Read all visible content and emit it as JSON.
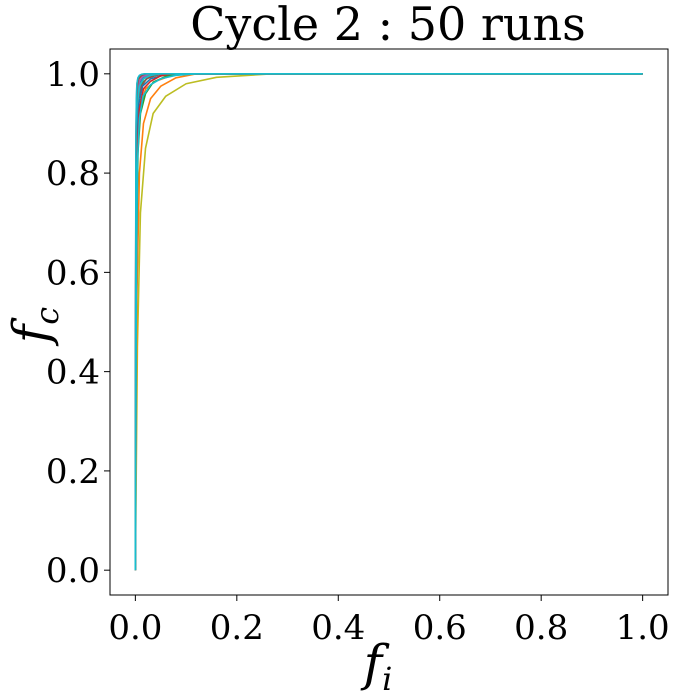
{
  "chart_data": {
    "type": "line",
    "title": "Cycle 2 : 50 runs",
    "xlabel": "f",
    "xlabel_sub": "i",
    "ylabel": "f",
    "ylabel_sub": "c",
    "xlim": [
      -0.05,
      1.05
    ],
    "ylim": [
      -0.05,
      1.05
    ],
    "xticks": [
      0.0,
      0.2,
      0.4,
      0.6,
      0.8,
      1.0
    ],
    "yticks": [
      0.0,
      0.2,
      0.4,
      0.6,
      0.8,
      1.0
    ],
    "xtick_labels": [
      "0.0",
      "0.2",
      "0.4",
      "0.6",
      "0.8",
      "1.0"
    ],
    "ytick_labels": [
      "0.0",
      "0.2",
      "0.4",
      "0.6",
      "0.8",
      "1.0"
    ],
    "grid": false,
    "legend": "none",
    "series": [
      {
        "color": "#1f77b4",
        "x": [
          0,
          0.001,
          0.002,
          0.004,
          0.008,
          0.015,
          0.03,
          0.05,
          1.0
        ],
        "y": [
          0,
          0.7,
          0.88,
          0.95,
          0.98,
          0.993,
          0.998,
          1.0,
          1.0
        ]
      },
      {
        "color": "#ff7f0e",
        "x": [
          0,
          0.002,
          0.005,
          0.01,
          0.02,
          0.04,
          0.07,
          0.1,
          1.0
        ],
        "y": [
          0,
          0.6,
          0.85,
          0.93,
          0.97,
          0.985,
          0.996,
          1.0,
          1.0
        ]
      },
      {
        "color": "#2ca02c",
        "x": [
          0,
          0.001,
          0.003,
          0.006,
          0.012,
          0.025,
          0.045,
          0.07,
          1.0
        ],
        "y": [
          0,
          0.75,
          0.9,
          0.96,
          0.98,
          0.992,
          0.998,
          1.0,
          1.0
        ]
      },
      {
        "color": "#d62728",
        "x": [
          0,
          0.001,
          0.002,
          0.004,
          0.007,
          0.012,
          0.02,
          0.03,
          1.0
        ],
        "y": [
          0,
          0.8,
          0.93,
          0.97,
          0.99,
          0.996,
          0.999,
          1.0,
          1.0
        ]
      },
      {
        "color": "#9467bd",
        "x": [
          0,
          0.001,
          0.002,
          0.004,
          0.008,
          0.014,
          0.025,
          0.04,
          1.0
        ],
        "y": [
          0,
          0.78,
          0.9,
          0.96,
          0.985,
          0.994,
          0.998,
          1.0,
          1.0
        ]
      },
      {
        "color": "#8c564b",
        "x": [
          0,
          0.001,
          0.003,
          0.006,
          0.012,
          0.022,
          0.04,
          0.06,
          1.0
        ],
        "y": [
          0,
          0.72,
          0.88,
          0.95,
          0.975,
          0.99,
          0.997,
          1.0,
          1.0
        ]
      },
      {
        "color": "#e377c2",
        "x": [
          0,
          0.001,
          0.002,
          0.003,
          0.005,
          0.009,
          0.015,
          0.02,
          1.0
        ],
        "y": [
          0,
          0.85,
          0.95,
          0.98,
          0.99,
          0.997,
          0.999,
          1.0,
          1.0
        ]
      },
      {
        "color": "#7f7f7f",
        "x": [
          0,
          0.001,
          0.003,
          0.005,
          0.01,
          0.018,
          0.03,
          0.045,
          1.0
        ],
        "y": [
          0,
          0.77,
          0.9,
          0.95,
          0.98,
          0.992,
          0.998,
          1.0,
          1.0
        ]
      },
      {
        "color": "#bcbd22",
        "x": [
          0,
          0.004,
          0.01,
          0.02,
          0.035,
          0.06,
          0.1,
          0.16,
          0.27,
          1.0
        ],
        "y": [
          0,
          0.45,
          0.72,
          0.85,
          0.92,
          0.955,
          0.98,
          0.993,
          1.0,
          1.0
        ]
      },
      {
        "color": "#17becf",
        "x": [
          0,
          0.001,
          0.002,
          0.004,
          0.008,
          0.016,
          0.03,
          0.05,
          1.0
        ],
        "y": [
          0,
          0.7,
          0.87,
          0.94,
          0.975,
          0.99,
          0.997,
          1.0,
          1.0
        ]
      },
      {
        "color": "#1f77b4",
        "x": [
          0,
          0.001,
          0.003,
          0.007,
          0.014,
          0.03,
          0.055,
          0.08,
          1.0
        ],
        "y": [
          0,
          0.68,
          0.86,
          0.94,
          0.975,
          0.99,
          0.997,
          1.0,
          1.0
        ]
      },
      {
        "color": "#ff7f0e",
        "x": [
          0,
          0.003,
          0.008,
          0.016,
          0.03,
          0.05,
          0.08,
          0.12,
          1.0
        ],
        "y": [
          0,
          0.55,
          0.8,
          0.9,
          0.95,
          0.975,
          0.992,
          1.0,
          1.0
        ]
      },
      {
        "color": "#2ca02c",
        "x": [
          0,
          0.002,
          0.005,
          0.01,
          0.02,
          0.035,
          0.06,
          0.09,
          1.0
        ],
        "y": [
          0,
          0.62,
          0.84,
          0.92,
          0.96,
          0.983,
          0.995,
          1.0,
          1.0
        ]
      },
      {
        "color": "#d62728",
        "x": [
          0,
          0.002,
          0.004,
          0.008,
          0.016,
          0.03,
          0.05,
          0.07,
          1.0
        ],
        "y": [
          0,
          0.66,
          0.85,
          0.93,
          0.97,
          0.985,
          0.996,
          1.0,
          1.0
        ]
      },
      {
        "color": "#8c564b",
        "x": [
          0,
          0.001,
          0.002,
          0.004,
          0.006,
          0.01,
          0.016,
          0.022,
          1.0
        ],
        "y": [
          0,
          0.83,
          0.94,
          0.975,
          0.99,
          0.996,
          0.999,
          1.0,
          1.0
        ]
      },
      {
        "color": "#17becf",
        "x": [
          0,
          0.001,
          0.002,
          0.003,
          0.005,
          0.008,
          0.012,
          0.018,
          1.0
        ],
        "y": [
          0,
          0.86,
          0.95,
          0.98,
          0.992,
          0.997,
          0.999,
          1.0,
          1.0
        ]
      },
      {
        "color": "#17becf",
        "x": [
          0,
          0.002,
          0.004,
          0.008,
          0.015,
          0.03,
          0.05,
          0.08,
          0.12,
          1.0
        ],
        "y": [
          0,
          0.6,
          0.82,
          0.91,
          0.955,
          0.978,
          0.99,
          0.997,
          1.0,
          1.0
        ]
      }
    ]
  }
}
